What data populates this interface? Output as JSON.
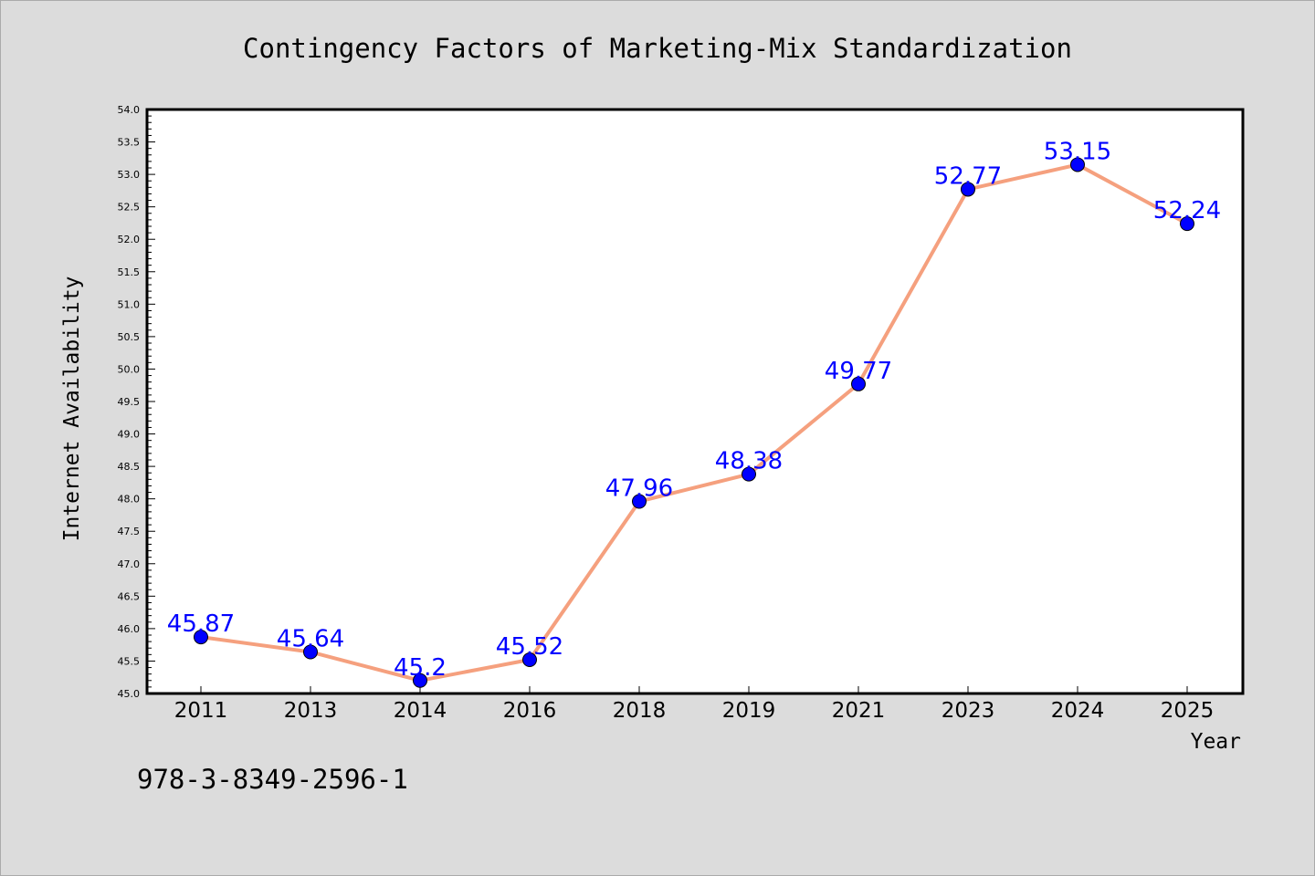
{
  "colors": {
    "background": "#dcdcdc",
    "plot_background": "#ffffff",
    "line": "#f5a07e",
    "marker": "#0000ff",
    "label": "#0000ff",
    "text": "#000000"
  },
  "footer_code": "978-3-8349-2596-1",
  "chart_data": {
    "type": "line",
    "title": "Contingency Factors of Marketing-Mix Standardization",
    "xlabel": "Year",
    "ylabel": "Internet Availability",
    "categories": [
      "2011",
      "2013",
      "2014",
      "2016",
      "2018",
      "2019",
      "2021",
      "2023",
      "2024",
      "2025"
    ],
    "series": [
      {
        "values": [
          45.87,
          45.64,
          45.2,
          45.52,
          47.96,
          48.38,
          49.77,
          52.77,
          53.15,
          52.24
        ],
        "data_labels": [
          "45.87",
          "45.64",
          "45.2",
          "45.52",
          "47.96",
          "48.38",
          "49.77",
          "52.77",
          "53.15",
          "52.24"
        ]
      }
    ],
    "ylim": [
      45.0,
      54.0
    ],
    "yticks": [
      "45.0",
      "45.5",
      "46.0",
      "46.5",
      "47.0",
      "47.5",
      "48.0",
      "48.5",
      "49.0",
      "49.5",
      "50.0",
      "50.5",
      "51.0",
      "51.5",
      "52.0",
      "52.5",
      "53.0",
      "53.5",
      "54.0"
    ],
    "grid": false,
    "legend": "none"
  }
}
